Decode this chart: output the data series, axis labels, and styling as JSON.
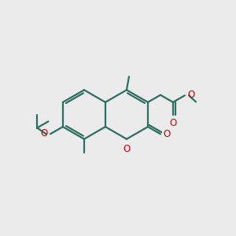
{
  "bg_color": "#ebebeb",
  "bond_color": "#2d6e5e",
  "o_color": "#cc0000",
  "line_width": 1.6,
  "figsize": [
    3.0,
    3.0
  ],
  "dpi": 100,
  "xlim": [
    0,
    10
  ],
  "ylim": [
    0,
    10
  ]
}
